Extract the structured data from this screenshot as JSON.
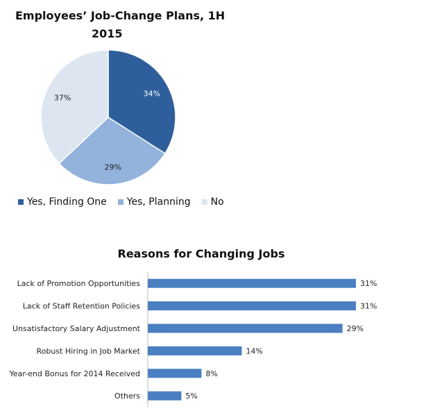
{
  "chart_data": [
    {
      "type": "pie",
      "title_line1": "Employees’ Job-Change Plans, 1H",
      "title_line2": "2015",
      "slices": [
        {
          "name": "Yes, Finding One",
          "value": 34,
          "label": "34%",
          "color": "#2e5f9c"
        },
        {
          "name": "Yes, Planning",
          "value": 29,
          "label": "29%",
          "color": "#93b3dd"
        },
        {
          "name": "No",
          "value": 37,
          "label": "37%",
          "color": "#dde5f1"
        }
      ],
      "legend_position": "bottom-left"
    },
    {
      "type": "bar",
      "orientation": "horizontal",
      "title": "Reasons for Changing Jobs",
      "categories": [
        "Lack of Promotion Opportunities",
        "Lack of Staff Retention Policies",
        "Unsatisfactory Salary Adjustment",
        "Robust Hiring in Job Market",
        "Year-end Bonus for 2014 Received",
        "Others"
      ],
      "values": [
        31,
        31,
        29,
        14,
        8,
        5
      ],
      "value_labels": [
        "31%",
        "31%",
        "29%",
        "14%",
        "8%",
        "5%"
      ],
      "bar_color": "#4a7fc1",
      "grid": false
    }
  ]
}
